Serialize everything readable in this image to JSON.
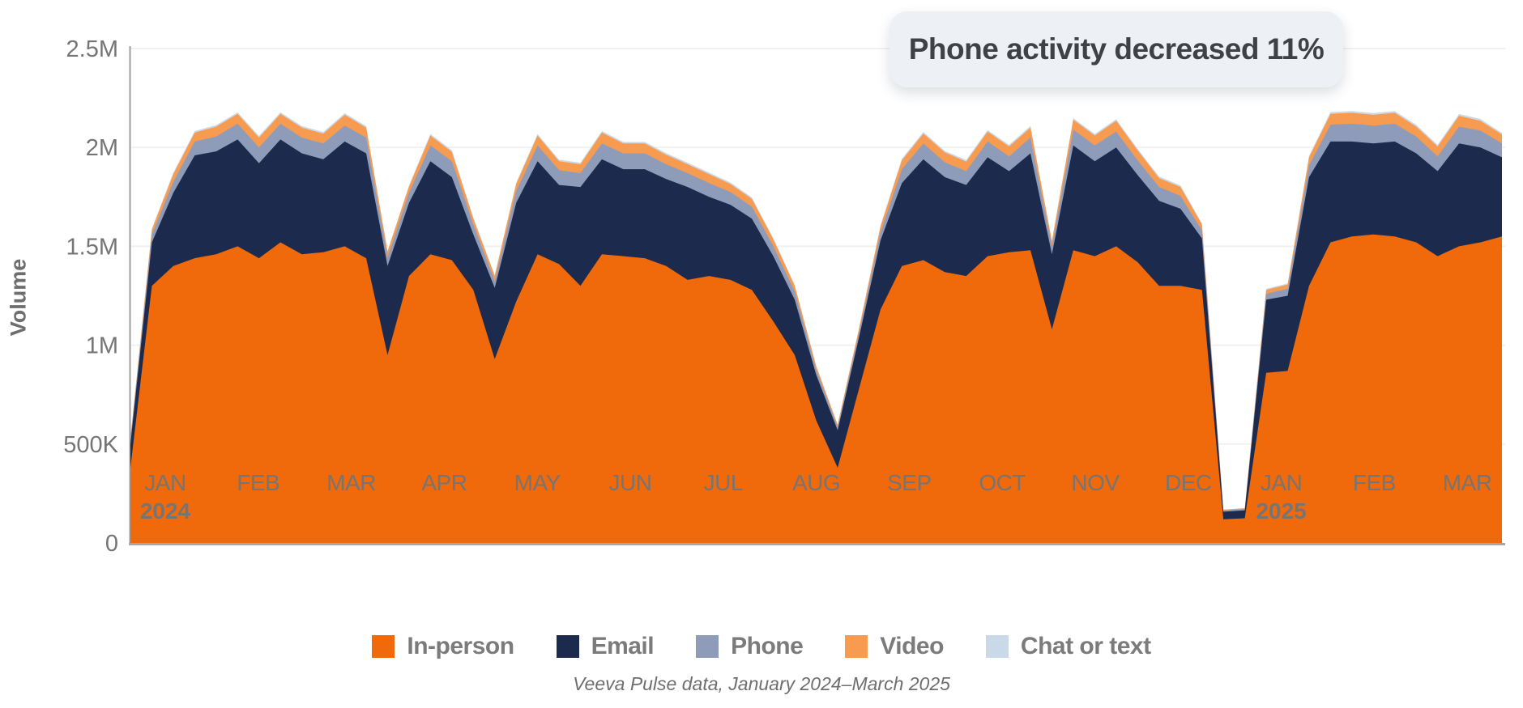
{
  "caption": "Veeva Pulse data, January 2024–March 2025",
  "annotation": {
    "text": "Phone activity decreased 11%"
  },
  "colors": {
    "in_person": "#f0690a",
    "email": "#1c2b4d",
    "phone": "#8e9cba",
    "video": "#f79b51",
    "chat": "#c9d9e8",
    "grid": "#f1f1f1",
    "axis": "#9e9e9e",
    "tick_text": "#757575",
    "callout_bg": "#edf1f6"
  },
  "chart_data": {
    "type": "area",
    "stacked": true,
    "granularity": "weekly",
    "ylabel": "Volume",
    "xlabel": "",
    "ylim": [
      0,
      2.5
    ],
    "unit": "millions of interactions",
    "grid": "horizontal",
    "legend_position": "bottom",
    "y_ticks": [
      {
        "v": 0,
        "label": "0"
      },
      {
        "v": 0.5,
        "label": "500K"
      },
      {
        "v": 1,
        "label": "1M"
      },
      {
        "v": 1.5,
        "label": "1.5M"
      },
      {
        "v": 2,
        "label": "2M"
      },
      {
        "v": 2.5,
        "label": "2.5M"
      }
    ],
    "x_months": [
      {
        "label": "JAN",
        "year": "2024"
      },
      {
        "label": "FEB"
      },
      {
        "label": "MAR"
      },
      {
        "label": "APR"
      },
      {
        "label": "MAY"
      },
      {
        "label": "JUN"
      },
      {
        "label": "JUL"
      },
      {
        "label": "AUG"
      },
      {
        "label": "SEP"
      },
      {
        "label": "OCT"
      },
      {
        "label": "NOV"
      },
      {
        "label": "DEC"
      },
      {
        "label": "JAN",
        "year": "2025"
      },
      {
        "label": "FEB"
      },
      {
        "label": "MAR"
      }
    ],
    "series": [
      {
        "name": "In-person",
        "color": "#f0690a",
        "values": [
          0.38,
          1.3,
          1.4,
          1.44,
          1.46,
          1.5,
          1.44,
          1.52,
          1.46,
          1.47,
          1.5,
          1.44,
          0.95,
          1.35,
          1.46,
          1.43,
          1.28,
          0.93,
          1.22,
          1.46,
          1.41,
          1.3,
          1.46,
          1.45,
          1.44,
          1.4,
          1.33,
          1.35,
          1.33,
          1.28,
          1.12,
          0.95,
          0.62,
          0.38,
          0.78,
          1.18,
          1.4,
          1.43,
          1.37,
          1.35,
          1.45,
          1.47,
          1.48,
          1.08,
          1.48,
          1.45,
          1.5,
          1.42,
          1.3,
          1.3,
          1.28,
          0.12,
          0.125,
          0.86,
          0.87,
          1.3,
          1.52,
          1.55,
          1.56,
          1.55,
          1.52,
          1.45,
          1.5,
          1.52,
          1.55
        ]
      },
      {
        "name": "Email",
        "color": "#1c2b4d",
        "values": [
          0.12,
          0.22,
          0.37,
          0.52,
          0.52,
          0.54,
          0.48,
          0.52,
          0.51,
          0.47,
          0.53,
          0.53,
          0.45,
          0.37,
          0.47,
          0.42,
          0.28,
          0.36,
          0.5,
          0.47,
          0.4,
          0.5,
          0.48,
          0.44,
          0.45,
          0.44,
          0.47,
          0.4,
          0.38,
          0.36,
          0.33,
          0.28,
          0.23,
          0.19,
          0.26,
          0.35,
          0.42,
          0.51,
          0.48,
          0.46,
          0.5,
          0.41,
          0.49,
          0.38,
          0.53,
          0.48,
          0.5,
          0.44,
          0.43,
          0.39,
          0.26,
          0.038,
          0.04,
          0.37,
          0.38,
          0.55,
          0.51,
          0.48,
          0.46,
          0.48,
          0.45,
          0.43,
          0.52,
          0.48,
          0.4
        ]
      },
      {
        "name": "Phone",
        "color": "#8e9cba",
        "values": [
          0.02,
          0.04,
          0.055,
          0.07,
          0.075,
          0.08,
          0.08,
          0.08,
          0.08,
          0.08,
          0.08,
          0.08,
          0.045,
          0.05,
          0.08,
          0.08,
          0.05,
          0.035,
          0.06,
          0.08,
          0.075,
          0.07,
          0.08,
          0.08,
          0.08,
          0.075,
          0.07,
          0.07,
          0.065,
          0.06,
          0.05,
          0.04,
          0.025,
          0.015,
          0.025,
          0.04,
          0.07,
          0.08,
          0.075,
          0.07,
          0.08,
          0.075,
          0.08,
          0.04,
          0.08,
          0.08,
          0.08,
          0.075,
          0.07,
          0.065,
          0.04,
          0.006,
          0.006,
          0.03,
          0.035,
          0.06,
          0.085,
          0.09,
          0.09,
          0.09,
          0.085,
          0.075,
          0.085,
          0.085,
          0.07
        ]
      },
      {
        "name": "Video",
        "color": "#f79b51",
        "values": [
          0.008,
          0.025,
          0.04,
          0.045,
          0.05,
          0.05,
          0.05,
          0.05,
          0.05,
          0.05,
          0.055,
          0.05,
          0.028,
          0.032,
          0.05,
          0.048,
          0.03,
          0.025,
          0.035,
          0.05,
          0.045,
          0.045,
          0.055,
          0.05,
          0.05,
          0.048,
          0.045,
          0.045,
          0.04,
          0.04,
          0.035,
          0.03,
          0.018,
          0.012,
          0.018,
          0.03,
          0.045,
          0.05,
          0.05,
          0.048,
          0.05,
          0.05,
          0.05,
          0.025,
          0.05,
          0.05,
          0.055,
          0.05,
          0.045,
          0.045,
          0.03,
          0.004,
          0.004,
          0.02,
          0.022,
          0.04,
          0.055,
          0.055,
          0.055,
          0.055,
          0.05,
          0.05,
          0.055,
          0.05,
          0.045
        ]
      },
      {
        "name": "Chat or text",
        "color": "#c9d9e8",
        "values": [
          0.002,
          0.005,
          0.007,
          0.008,
          0.008,
          0.008,
          0.008,
          0.008,
          0.008,
          0.008,
          0.008,
          0.008,
          0.005,
          0.006,
          0.008,
          0.008,
          0.006,
          0.005,
          0.007,
          0.008,
          0.008,
          0.008,
          0.008,
          0.008,
          0.008,
          0.008,
          0.008,
          0.008,
          0.008,
          0.007,
          0.006,
          0.005,
          0.004,
          0.003,
          0.004,
          0.006,
          0.008,
          0.008,
          0.008,
          0.008,
          0.008,
          0.008,
          0.008,
          0.005,
          0.008,
          0.008,
          0.008,
          0.008,
          0.008,
          0.008,
          0.006,
          0.001,
          0.001,
          0.005,
          0.005,
          0.007,
          0.009,
          0.009,
          0.009,
          0.009,
          0.009,
          0.008,
          0.009,
          0.009,
          0.008
        ]
      }
    ]
  }
}
